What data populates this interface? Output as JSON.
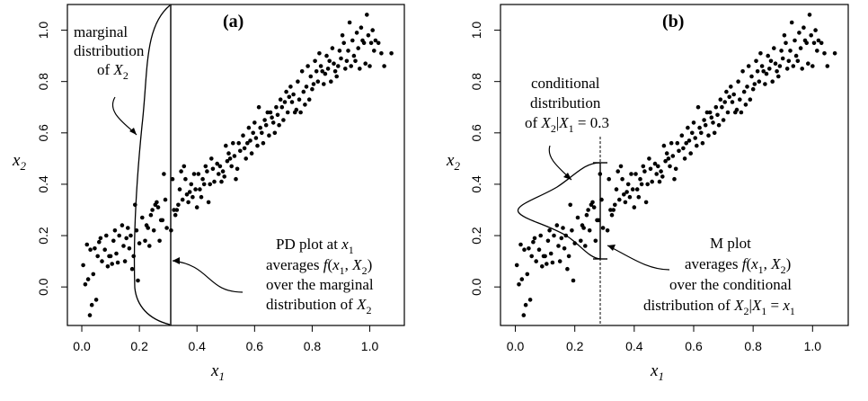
{
  "chart_data": [
    {
      "type": "scatter",
      "panel_label": "(a)",
      "xlabel": "x1",
      "ylabel": "x2",
      "xlim": [
        -0.05,
        1.12
      ],
      "ylim": [
        -0.15,
        1.1
      ],
      "xticks": [
        "0.0",
        "0.2",
        "0.4",
        "0.6",
        "0.8",
        "1.0"
      ],
      "yticks": [
        "0.0",
        "0.2",
        "0.4",
        "0.6",
        "0.8",
        "1.0"
      ],
      "grid": false,
      "annotations": {
        "marginal": [
          "marginal",
          "distribution",
          "of X2"
        ],
        "pd": [
          "PD plot at x1",
          "averages f(x1, X2)",
          "over the marginal",
          "distribution of X2"
        ]
      },
      "vertical_line_x": 0.3
    },
    {
      "type": "scatter",
      "panel_label": "(b)",
      "xlabel": "x1",
      "ylabel": "x2",
      "xlim": [
        -0.05,
        1.12
      ],
      "ylim": [
        -0.15,
        1.1
      ],
      "xticks": [
        "0.0",
        "0.2",
        "0.4",
        "0.6",
        "0.8",
        "1.0"
      ],
      "yticks": [
        "0.0",
        "0.2",
        "0.4",
        "0.6",
        "0.8",
        "1.0"
      ],
      "grid": false,
      "annotations": {
        "conditional": [
          "conditional",
          "distribution",
          "of X2|X1 = 0.3"
        ],
        "m": [
          "M plot",
          "averages f(x1, X2)",
          "over the conditional",
          "distribution of X2|X1 = x1"
        ]
      },
      "vertical_line_x": 0.3
    }
  ],
  "points": [
    [
      0.005,
      0.085
    ],
    [
      0.012,
      0.01
    ],
    [
      0.018,
      0.165
    ],
    [
      0.022,
      0.03
    ],
    [
      0.028,
      -0.11
    ],
    [
      0.03,
      0.145
    ],
    [
      0.035,
      -0.07
    ],
    [
      0.04,
      0.05
    ],
    [
      0.045,
      0.15
    ],
    [
      0.05,
      -0.05
    ],
    [
      0.055,
      0.12
    ],
    [
      0.06,
      0.175
    ],
    [
      0.065,
      0.19
    ],
    [
      0.07,
      0.1
    ],
    [
      0.08,
      0.145
    ],
    [
      0.085,
      0.2
    ],
    [
      0.09,
      0.08
    ],
    [
      0.095,
      0.12
    ],
    [
      0.1,
      0.12
    ],
    [
      0.105,
      0.09
    ],
    [
      0.11,
      0.18
    ],
    [
      0.115,
      0.22
    ],
    [
      0.12,
      0.13
    ],
    [
      0.125,
      0.095
    ],
    [
      0.13,
      0.2
    ],
    [
      0.14,
      0.24
    ],
    [
      0.145,
      0.16
    ],
    [
      0.15,
      0.1
    ],
    [
      0.155,
      0.19
    ],
    [
      0.16,
      0.23
    ],
    [
      0.165,
      0.15
    ],
    [
      0.17,
      0.2
    ],
    [
      0.175,
      0.07
    ],
    [
      0.18,
      0.12
    ],
    [
      0.185,
      0.32
    ],
    [
      0.19,
      0.22
    ],
    [
      0.195,
      0.025
    ],
    [
      0.2,
      0.17
    ],
    [
      0.21,
      0.27
    ],
    [
      0.22,
      0.18
    ],
    [
      0.225,
      0.24
    ],
    [
      0.23,
      0.23
    ],
    [
      0.235,
      0.16
    ],
    [
      0.24,
      0.28
    ],
    [
      0.245,
      0.3
    ],
    [
      0.25,
      0.22
    ],
    [
      0.255,
      0.32
    ],
    [
      0.26,
      0.33
    ],
    [
      0.265,
      0.31
    ],
    [
      0.27,
      0.18
    ],
    [
      0.275,
      0.26
    ],
    [
      0.28,
      0.26
    ],
    [
      0.285,
      0.44
    ],
    [
      0.29,
      0.34
    ],
    [
      0.295,
      0.23
    ],
    [
      0.31,
      0.22
    ],
    [
      0.315,
      0.42
    ],
    [
      0.32,
      0.3
    ],
    [
      0.325,
      0.28
    ],
    [
      0.33,
      0.3
    ],
    [
      0.335,
      0.32
    ],
    [
      0.34,
      0.38
    ],
    [
      0.345,
      0.45
    ],
    [
      0.35,
      0.34
    ],
    [
      0.355,
      0.47
    ],
    [
      0.36,
      0.42
    ],
    [
      0.365,
      0.36
    ],
    [
      0.37,
      0.33
    ],
    [
      0.375,
      0.37
    ],
    [
      0.38,
      0.4
    ],
    [
      0.385,
      0.35
    ],
    [
      0.39,
      0.44
    ],
    [
      0.395,
      0.38
    ],
    [
      0.4,
      0.31
    ],
    [
      0.405,
      0.44
    ],
    [
      0.41,
      0.38
    ],
    [
      0.415,
      0.35
    ],
    [
      0.42,
      0.42
    ],
    [
      0.425,
      0.4
    ],
    [
      0.43,
      0.47
    ],
    [
      0.435,
      0.45
    ],
    [
      0.44,
      0.33
    ],
    [
      0.445,
      0.4
    ],
    [
      0.45,
      0.5
    ],
    [
      0.455,
      0.46
    ],
    [
      0.46,
      0.41
    ],
    [
      0.47,
      0.48
    ],
    [
      0.475,
      0.44
    ],
    [
      0.48,
      0.47
    ],
    [
      0.485,
      0.41
    ],
    [
      0.49,
      0.45
    ],
    [
      0.495,
      0.43
    ],
    [
      0.5,
      0.55
    ],
    [
      0.505,
      0.49
    ],
    [
      0.51,
      0.52
    ],
    [
      0.515,
      0.5
    ],
    [
      0.52,
      0.47
    ],
    [
      0.525,
      0.56
    ],
    [
      0.53,
      0.51
    ],
    [
      0.535,
      0.42
    ],
    [
      0.54,
      0.46
    ],
    [
      0.545,
      0.56
    ],
    [
      0.55,
      0.53
    ],
    [
      0.56,
      0.59
    ],
    [
      0.565,
      0.54
    ],
    [
      0.57,
      0.5
    ],
    [
      0.575,
      0.56
    ],
    [
      0.58,
      0.62
    ],
    [
      0.585,
      0.57
    ],
    [
      0.59,
      0.52
    ],
    [
      0.595,
      0.6
    ],
    [
      0.6,
      0.64
    ],
    [
      0.605,
      0.58
    ],
    [
      0.61,
      0.55
    ],
    [
      0.615,
      0.7
    ],
    [
      0.62,
      0.62
    ],
    [
      0.625,
      0.6
    ],
    [
      0.63,
      0.56
    ],
    [
      0.635,
      0.65
    ],
    [
      0.64,
      0.63
    ],
    [
      0.645,
      0.68
    ],
    [
      0.65,
      0.59
    ],
    [
      0.655,
      0.68
    ],
    [
      0.66,
      0.66
    ],
    [
      0.665,
      0.64
    ],
    [
      0.67,
      0.6
    ],
    [
      0.675,
      0.7
    ],
    [
      0.68,
      0.67
    ],
    [
      0.685,
      0.63
    ],
    [
      0.69,
      0.73
    ],
    [
      0.695,
      0.7
    ],
    [
      0.7,
      0.65
    ],
    [
      0.705,
      0.72
    ],
    [
      0.71,
      0.76
    ],
    [
      0.715,
      0.68
    ],
    [
      0.72,
      0.74
    ],
    [
      0.725,
      0.78
    ],
    [
      0.73,
      0.72
    ],
    [
      0.735,
      0.75
    ],
    [
      0.74,
      0.68
    ],
    [
      0.745,
      0.69
    ],
    [
      0.75,
      0.8
    ],
    [
      0.755,
      0.73
    ],
    [
      0.76,
      0.68
    ],
    [
      0.765,
      0.84
    ],
    [
      0.77,
      0.76
    ],
    [
      0.775,
      0.71
    ],
    [
      0.78,
      0.78
    ],
    [
      0.785,
      0.86
    ],
    [
      0.79,
      0.73
    ],
    [
      0.795,
      0.82
    ],
    [
      0.8,
      0.77
    ],
    [
      0.805,
      0.79
    ],
    [
      0.81,
      0.88
    ],
    [
      0.815,
      0.84
    ],
    [
      0.82,
      0.8
    ],
    [
      0.825,
      0.91
    ],
    [
      0.83,
      0.86
    ],
    [
      0.835,
      0.84
    ],
    [
      0.84,
      0.79
    ],
    [
      0.845,
      0.83
    ],
    [
      0.85,
      0.9
    ],
    [
      0.855,
      0.85
    ],
    [
      0.86,
      0.88
    ],
    [
      0.865,
      0.8
    ],
    [
      0.87,
      0.93
    ],
    [
      0.875,
      0.87
    ],
    [
      0.88,
      0.84
    ],
    [
      0.885,
      0.82
    ],
    [
      0.89,
      0.86
    ],
    [
      0.895,
      0.92
    ],
    [
      0.9,
      0.89
    ],
    [
      0.905,
      0.98
    ],
    [
      0.91,
      0.95
    ],
    [
      0.915,
      0.85
    ],
    [
      0.92,
      0.88
    ],
    [
      0.925,
      0.92
    ],
    [
      0.93,
      1.03
    ],
    [
      0.935,
      0.86
    ],
    [
      0.94,
      0.96
    ],
    [
      0.945,
      0.9
    ],
    [
      0.95,
      0.88
    ],
    [
      0.955,
      0.99
    ],
    [
      0.96,
      0.93
    ],
    [
      0.965,
      0.85
    ],
    [
      0.97,
      1.01
    ],
    [
      0.975,
      0.96
    ],
    [
      0.98,
      0.95
    ],
    [
      0.985,
      0.87
    ],
    [
      0.99,
      1.06
    ],
    [
      0.995,
      0.98
    ],
    [
      1.0,
      0.86
    ],
    [
      1.005,
      0.95
    ],
    [
      1.01,
      1.0
    ],
    [
      1.015,
      0.92
    ],
    [
      1.02,
      0.96
    ],
    [
      1.03,
      0.95
    ],
    [
      1.04,
      0.91
    ],
    [
      1.05,
      0.86
    ],
    [
      1.075,
      0.91
    ]
  ]
}
